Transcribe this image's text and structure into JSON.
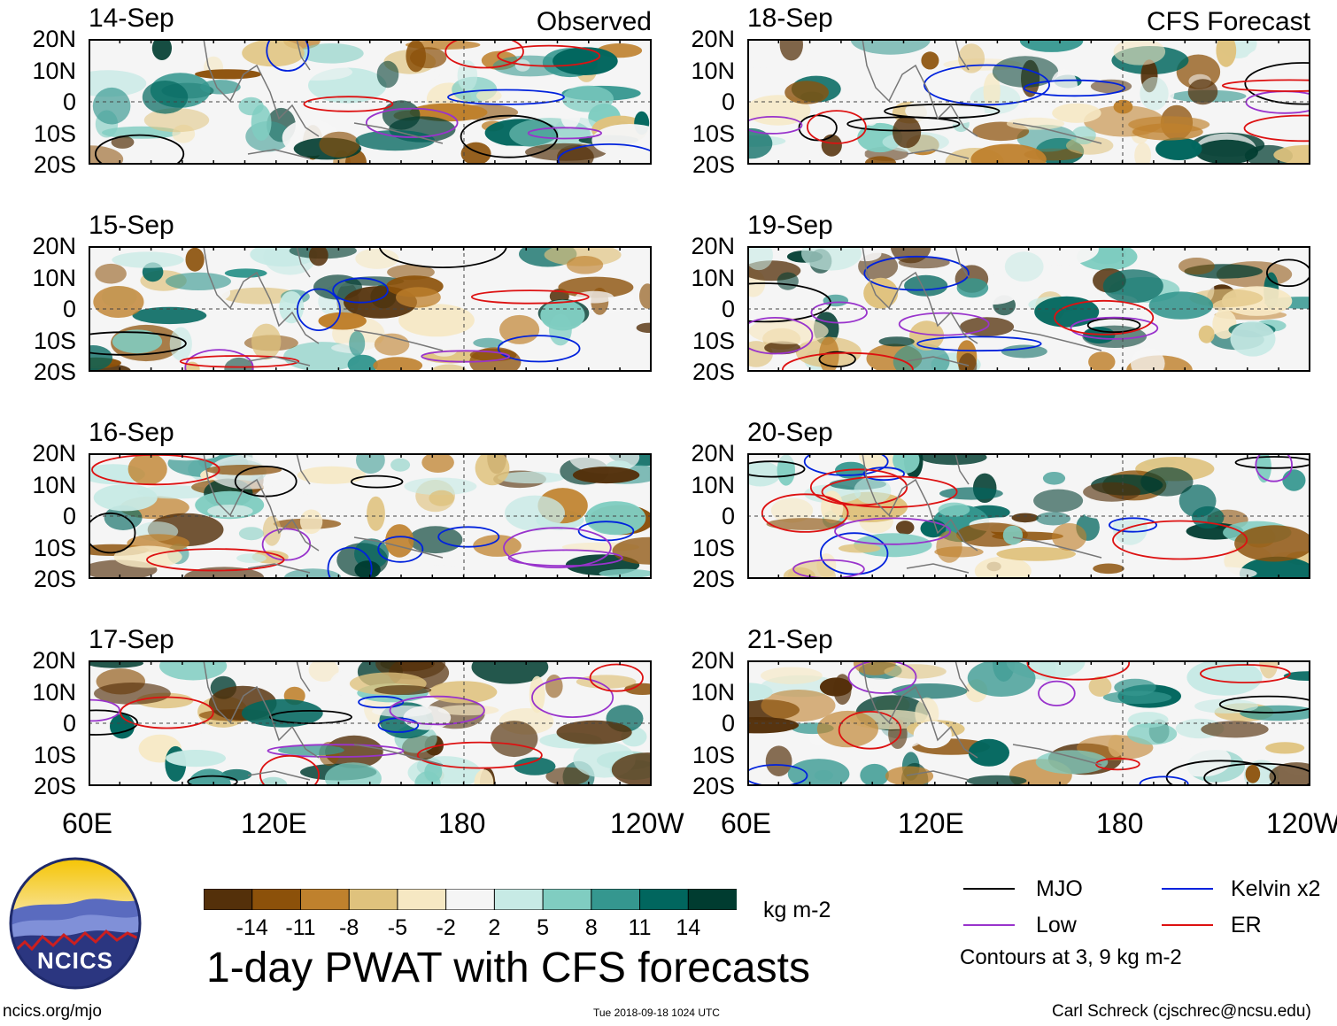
{
  "panels": [
    {
      "date": "14-Sep",
      "label": "Observed",
      "column": "left",
      "row": 0
    },
    {
      "date": "15-Sep",
      "label": "",
      "column": "left",
      "row": 1
    },
    {
      "date": "16-Sep",
      "label": "",
      "column": "left",
      "row": 2
    },
    {
      "date": "17-Sep",
      "label": "",
      "column": "left",
      "row": 3
    },
    {
      "date": "18-Sep",
      "label": "CFS Forecast",
      "column": "right",
      "row": 0
    },
    {
      "date": "19-Sep",
      "label": "",
      "column": "right",
      "row": 1
    },
    {
      "date": "20-Sep",
      "label": "",
      "column": "right",
      "row": 2
    },
    {
      "date": "21-Sep",
      "label": "",
      "column": "right",
      "row": 3
    }
  ],
  "y_ticks": [
    "20N",
    "10N",
    "0",
    "10S",
    "20S"
  ],
  "x_ticks": [
    "60E",
    "120E",
    "180",
    "120W"
  ],
  "colorbar": {
    "ticks": [
      "-14",
      "-11",
      "-8",
      "-5",
      "-2",
      "2",
      "5",
      "8",
      "11",
      "14"
    ],
    "colors": [
      "#54300a",
      "#8c510a",
      "#bf812d",
      "#dfc27d",
      "#f6e8c3",
      "#f5f5f5",
      "#c7eae5",
      "#80cdc1",
      "#35978f",
      "#01665e",
      "#003c30"
    ],
    "units": "kg m-2"
  },
  "title": "1-day PWAT with CFS forecasts",
  "legend": {
    "items": [
      {
        "label": "MJO",
        "color": "#000000"
      },
      {
        "label": "Kelvin x2",
        "color": "#0022dd"
      },
      {
        "label": "Low",
        "color": "#9933cc"
      },
      {
        "label": "ER",
        "color": "#dd1111"
      }
    ],
    "note": "Contours at 3, 9 kg m-2"
  },
  "logo_text": "NCICS",
  "footer": {
    "url": "ncics.org/mjo",
    "timestamp": "Tue 2018-09-18 1024 UTC",
    "credit": "Carl Schreck (cjschrec@ncsu.edu)"
  }
}
